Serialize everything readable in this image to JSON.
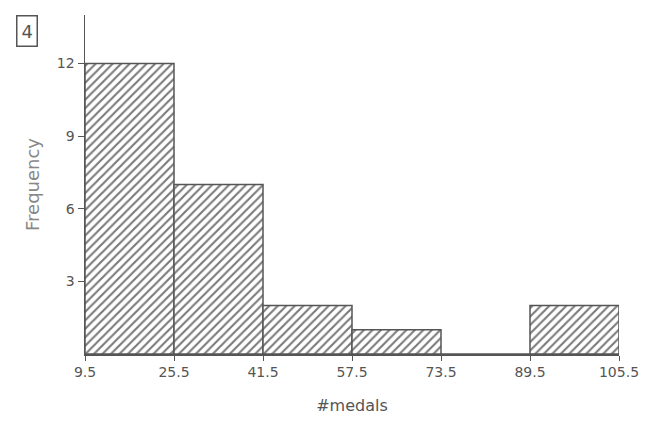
{
  "chart_data": {
    "type": "histogram",
    "annotations": [
      "4"
    ],
    "bins": [
      9.5,
      25.5,
      41.5,
      57.5,
      73.5,
      89.5,
      105.5
    ],
    "values": [
      12,
      7,
      2,
      1,
      0,
      2
    ],
    "color": "#7a7a7a",
    "x_label": "#medals",
    "y_label": "Frequency",
    "xlim": [
      9.5,
      105.5
    ],
    "xticks": [
      9.5,
      25.5,
      41.5,
      57.5,
      73.5,
      89.5,
      105.5
    ],
    "ylim": [
      0,
      14
    ],
    "yticks": [
      3,
      6,
      9,
      12
    ],
    "grid": false
  }
}
